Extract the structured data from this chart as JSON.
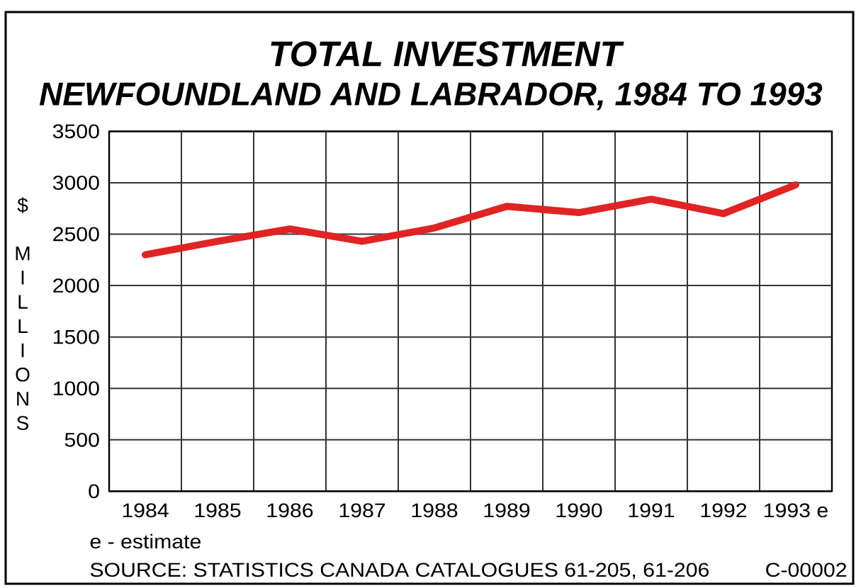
{
  "chart_data": {
    "type": "line",
    "title": "TOTAL INVESTMENT",
    "subtitle": "NEWFOUNDLAND AND LABRADOR, 1984 TO 1993",
    "ylabel": "$ MILLIONS",
    "categories": [
      "1984",
      "1985",
      "1986",
      "1987",
      "1988",
      "1989",
      "1990",
      "1991",
      "1992",
      "1993 e"
    ],
    "values": [
      2300,
      2430,
      2550,
      2430,
      2560,
      2770,
      2710,
      2840,
      2700,
      2980
    ],
    "color": "#e02424",
    "line_style": "solid",
    "ylim": [
      0,
      3500
    ],
    "yticks": [
      0,
      500,
      1000,
      1500,
      2000,
      2500,
      3000,
      3500
    ],
    "grid": true,
    "annotations": [
      "e - estimate",
      "SOURCE: STATISTICS CANADA CATALOGUES 61-205, 61-206",
      "C-00002"
    ]
  }
}
